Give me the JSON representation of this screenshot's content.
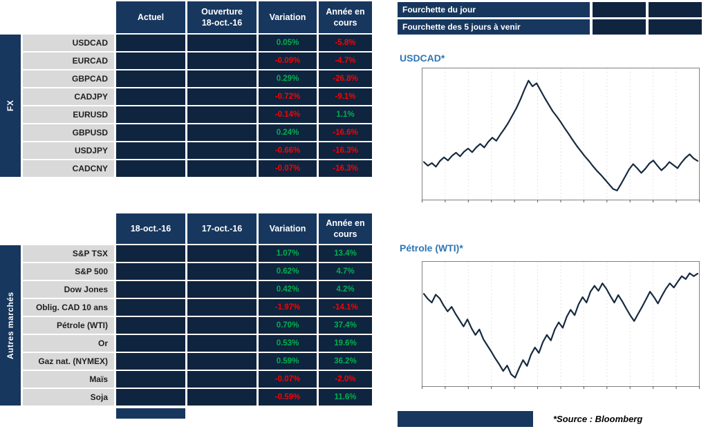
{
  "fx_table": {
    "vertical_label": "FX",
    "headers": {
      "col1": "Actuel",
      "col2": "Ouverture\n18-oct.-16",
      "col3": "Variation",
      "col4": "Année en\ncours"
    },
    "rows": [
      {
        "label": "USDCAD",
        "actuel": "",
        "ouverture": "",
        "variation": "0.05%",
        "ytd": "-5.8%"
      },
      {
        "label": "EURCAD",
        "actuel": "",
        "ouverture": "",
        "variation": "-0.09%",
        "ytd": "-4.7%"
      },
      {
        "label": "GBPCAD",
        "actuel": "",
        "ouverture": "",
        "variation": "0.29%",
        "ytd": "-26.8%"
      },
      {
        "label": "CADJPY",
        "actuel": "",
        "ouverture": "",
        "variation": "-0.72%",
        "ytd": "-9.1%"
      },
      {
        "label": "EURUSD",
        "actuel": "",
        "ouverture": "",
        "variation": "-0.14%",
        "ytd": "1.1%"
      },
      {
        "label": "GBPUSD",
        "actuel": "",
        "ouverture": "",
        "variation": "0.24%",
        "ytd": "-16.6%"
      },
      {
        "label": "USDJPY",
        "actuel": "",
        "ouverture": "",
        "variation": "-0.66%",
        "ytd": "-16.3%"
      },
      {
        "label": "CADCNY",
        "actuel": "",
        "ouverture": "",
        "variation": "-0.07%",
        "ytd": "-16.3%"
      }
    ]
  },
  "markets_table": {
    "vertical_label": "Autres marchés",
    "headers": {
      "col1": "18-oct.-16",
      "col2": "17-oct.-16",
      "col3": "Variation",
      "col4": "Année en\ncours"
    },
    "rows": [
      {
        "label": "S&P TSX",
        "col1": "",
        "col2": "",
        "variation": "1.07%",
        "ytd": "13.4%"
      },
      {
        "label": "S&P 500",
        "col1": "",
        "col2": "",
        "variation": "0.62%",
        "ytd": "4.7%"
      },
      {
        "label": "Dow Jones",
        "col1": "",
        "col2": "",
        "variation": "0.42%",
        "ytd": "4.2%"
      },
      {
        "label": "Oblig. CAD 10 ans",
        "col1": "",
        "col2": "",
        "variation": "-1.97%",
        "ytd": "-14.1%"
      },
      {
        "label": "Pétrole (WTI)",
        "col1": "",
        "col2": "",
        "variation": "0.70%",
        "ytd": "37.4%"
      },
      {
        "label": "Or",
        "col1": "",
        "col2": "",
        "variation": "0.53%",
        "ytd": "19.6%"
      },
      {
        "label": "Gaz nat. (NYMEX)",
        "col1": "",
        "col2": "",
        "variation": "0.59%",
        "ytd": "36.2%"
      },
      {
        "label": "Maïs",
        "col1": "",
        "col2": "",
        "variation": "-0.07%",
        "ytd": "-2.0%"
      },
      {
        "label": "Soja",
        "col1": "",
        "col2": "",
        "variation": "-0.59%",
        "ytd": "11.6%"
      }
    ]
  },
  "ranges": {
    "day_label": "Fourchette du jour",
    "five_day_label": "Fourchette des 5 jours à venir"
  },
  "footer": {
    "source": "*Source : Bloomberg"
  },
  "colors": {
    "header_navy": "#17375E",
    "cell_navy": "#0F243E",
    "positive": "#00B050",
    "negative": "#FF0000",
    "label_gray": "#D9D9D9",
    "chart_line": "#16293F",
    "chart_title": "#2E75B6"
  },
  "chart_data": [
    {
      "type": "line",
      "title": "USDCAD*",
      "xlabel": "",
      "ylabel": "",
      "ylim": [
        1.24,
        1.48
      ],
      "x_tick_labels_visible": false,
      "grid": "vertical-dashed",
      "y": [
        1.306,
        1.299,
        1.304,
        1.297,
        1.308,
        1.315,
        1.309,
        1.318,
        1.324,
        1.317,
        1.326,
        1.332,
        1.325,
        1.334,
        1.341,
        1.334,
        1.345,
        1.353,
        1.347,
        1.359,
        1.37,
        1.382,
        1.396,
        1.41,
        1.427,
        1.446,
        1.463,
        1.452,
        1.458,
        1.444,
        1.43,
        1.417,
        1.404,
        1.394,
        1.383,
        1.371,
        1.36,
        1.348,
        1.337,
        1.327,
        1.317,
        1.308,
        1.298,
        1.289,
        1.281,
        1.272,
        1.263,
        1.254,
        1.251,
        1.264,
        1.278,
        1.292,
        1.302,
        1.294,
        1.285,
        1.293,
        1.303,
        1.309,
        1.299,
        1.29,
        1.297,
        1.306,
        1.3,
        1.294,
        1.305,
        1.314,
        1.321,
        1.313,
        1.308
      ]
    },
    {
      "type": "line",
      "title": "Pétrole (WTI)*",
      "xlabel": "",
      "ylabel": "",
      "ylim": [
        25,
        53
      ],
      "x_tick_labels_visible": false,
      "grid": "vertical-dashed",
      "y": [
        46.2,
        45.0,
        44.1,
        46.0,
        45.1,
        43.4,
        42.0,
        43.1,
        41.4,
        39.9,
        38.4,
        40.1,
        38.0,
        36.4,
        37.7,
        35.4,
        33.9,
        32.4,
        30.8,
        29.4,
        27.8,
        29.1,
        27.0,
        26.2,
        28.4,
        30.4,
        29.0,
        31.7,
        33.4,
        32.1,
        34.7,
        36.4,
        35.1,
        37.7,
        39.4,
        38.1,
        40.7,
        42.4,
        41.1,
        43.7,
        45.4,
        44.1,
        46.7,
        48.1,
        46.9,
        48.7,
        47.4,
        45.7,
        44.1,
        45.9,
        44.4,
        42.7,
        41.1,
        39.7,
        41.4,
        43.1,
        44.9,
        46.7,
        45.4,
        43.9,
        45.7,
        47.4,
        48.7,
        47.7,
        49.1,
        50.4,
        49.7,
        51.1,
        50.4,
        51.0
      ]
    }
  ]
}
